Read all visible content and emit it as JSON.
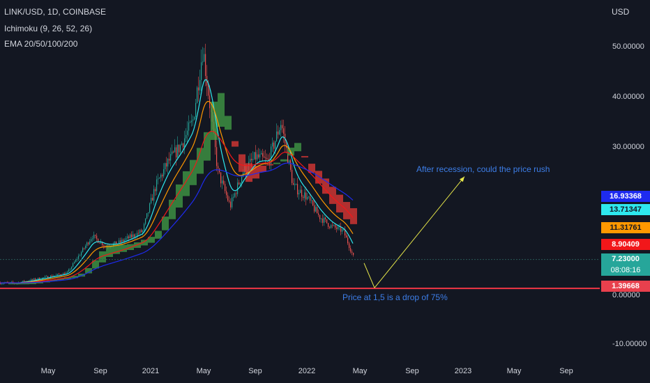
{
  "legend": {
    "symbol": "LINK/USD, 1D, COINBASE",
    "indicator1": "Ichimoku (9, 26, 52, 26)",
    "indicator2": "EMA 20/50/100/200"
  },
  "price_axis": {
    "unit": "USD",
    "ticks": [
      "50.00000",
      "40.00000",
      "30.00000",
      "0.00000",
      "-10.00000"
    ]
  },
  "tags": [
    {
      "label": "16.93368",
      "bg": "#1e2bf0",
      "fg": "#ffffff"
    },
    {
      "label": "13.71347",
      "bg": "#2ee8ee",
      "fg": "#131722"
    },
    {
      "label": "11.31761",
      "bg": "#ff9800",
      "fg": "#131722"
    },
    {
      "label": "8.90409",
      "bg": "#f2171a",
      "fg": "#ffffff"
    },
    {
      "label": "7.23000",
      "bg": "#26a69a",
      "fg": "#ffffff",
      "sub": "08:08:16"
    },
    {
      "label": "1.39668",
      "bg": "#e8404d",
      "fg": "#ffffff"
    }
  ],
  "annotations": {
    "upper": "After recession, could the price rush",
    "lower": "Price at 1,5 is a drop of 75%"
  },
  "colors": {
    "up": "#26a69a",
    "down": "#ef5350",
    "cloud_up": "#43a047",
    "cloud_down": "#e53935",
    "ema20": "#2ee8ee",
    "ema50": "#ff9800",
    "ema100": "#f2171a",
    "ema200": "#1e2bf0",
    "horizontal_line": "#f23645",
    "arrow": "#e8e84a"
  },
  "chart_data": {
    "type": "line",
    "title": "LINK/USD, 1D, COINBASE",
    "xlabel": "",
    "ylabel": "USD",
    "x_ticks": [
      "May",
      "Sep",
      "2021",
      "May",
      "Sep",
      "2022",
      "May",
      "Sep",
      "2023",
      "May",
      "Sep"
    ],
    "ylim": [
      -14,
      56
    ],
    "grid": false,
    "series": [
      {
        "name": "LINK/USD close (approx.)",
        "x": [
          "2020-02",
          "2020-04",
          "2020-06",
          "2020-08",
          "2020-09",
          "2020-10",
          "2020-12",
          "2021-01",
          "2021-02",
          "2021-03",
          "2021-04",
          "2021-05-10",
          "2021-06",
          "2021-07",
          "2021-08",
          "2021-09",
          "2021-10",
          "2021-11",
          "2021-12",
          "2022-01",
          "2022-02",
          "2022-03",
          "2022-04",
          "2022-05-12"
        ],
        "values": [
          2.5,
          3.5,
          4.5,
          12.0,
          10.0,
          10.5,
          13.0,
          22.0,
          27.0,
          30.0,
          35.0,
          50.0,
          25.0,
          18.0,
          25.0,
          28.0,
          27.0,
          35.0,
          22.0,
          20.0,
          16.0,
          14.0,
          13.0,
          7.23
        ]
      },
      {
        "name": "EMA 20",
        "x": [
          "2020-08",
          "2021-01",
          "2021-05",
          "2021-08",
          "2021-11",
          "2022-02",
          "2022-04",
          "2022-05"
        ],
        "values": [
          9.0,
          19.0,
          38.0,
          22.0,
          30.0,
          20.0,
          15.5,
          13.71
        ]
      },
      {
        "name": "EMA 200",
        "x": [
          "2020-08",
          "2021-01",
          "2021-05",
          "2021-08",
          "2021-11",
          "2022-02",
          "2022-04",
          "2022-05"
        ],
        "values": [
          5.0,
          9.0,
          19.0,
          24.0,
          27.0,
          24.0,
          19.5,
          16.93
        ]
      }
    ],
    "levels": [
      {
        "value": 1.39668,
        "label": "1.39668"
      }
    ],
    "projection": {
      "from": [
        "2022-06",
        1.5
      ],
      "to": [
        "2022-12",
        24.0
      ]
    }
  }
}
